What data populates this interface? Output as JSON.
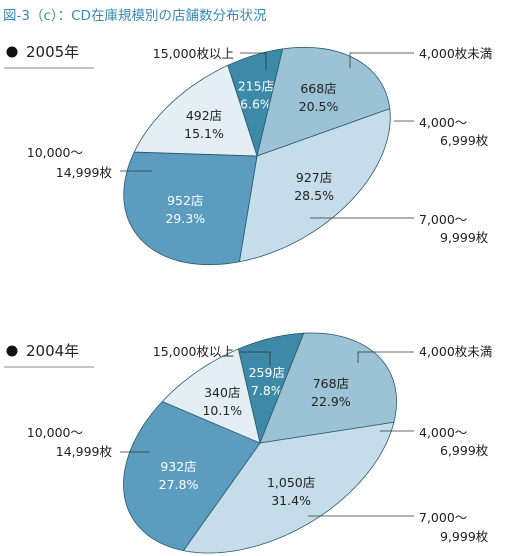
{
  "figure_title": "図-3（c）：CD在庫規模別の店舗数分布状況",
  "colors": {
    "title": "#3a8ab0",
    "outline": "#2a5870",
    "lt4000": "#3c8aa8",
    "r4000": "#9cc3d5",
    "r7000": "#c5dde8",
    "r10000": "#5b9cbf",
    "gt15000": "#e4eff5"
  },
  "chart_data": [
    {
      "type": "pie",
      "title": "2005年",
      "categories": [
        "4,000枚未満",
        "4,000～6,999枚",
        "7,000～9,999枚",
        "10,000～14,999枚",
        "15,000枚以上"
      ],
      "values": [
        215,
        668,
        927,
        952,
        492
      ],
      "value_labels": [
        "215店",
        "668店",
        "927店",
        "952店",
        "492店"
      ],
      "percent_labels": [
        "6.6%",
        "20.5%",
        "28.5%",
        "29.3%",
        "15.1%"
      ],
      "category_labels": [
        [
          "4,000枚未満"
        ],
        [
          "4,000～",
          "6,999枚"
        ],
        [
          "7,000～",
          "9,999枚"
        ],
        [
          "10,000～",
          "14,999枚"
        ],
        [
          "15,000枚以上"
        ]
      ]
    },
    {
      "type": "pie",
      "title": "2004年",
      "categories": [
        "4,000枚未満",
        "4,000～6,999枚",
        "7,000～9,999枚",
        "10,000～14,999枚",
        "15,000枚以上"
      ],
      "values": [
        259,
        768,
        1050,
        932,
        340
      ],
      "value_labels": [
        "259店",
        "768店",
        "1,050店",
        "932店",
        "340店"
      ],
      "percent_labels": [
        "7.8%",
        "22.9%",
        "31.4%",
        "27.8%",
        "10.1%"
      ],
      "category_labels": [
        [
          "4,000枚未満"
        ],
        [
          "4,000～",
          "6,999枚"
        ],
        [
          "7,000～",
          "9,999枚"
        ],
        [
          "10,000～",
          "14,999枚"
        ],
        [
          "15,000枚以上"
        ]
      ]
    }
  ]
}
